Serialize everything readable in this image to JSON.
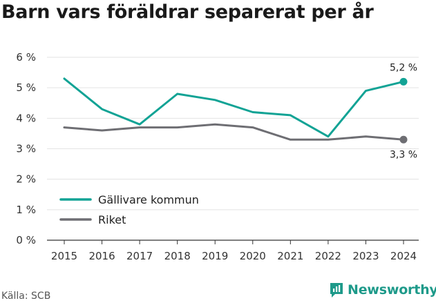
{
  "title": "Barn vars föräldrar separerat per år",
  "source": "Källa: SCB",
  "brand": {
    "name": "Newsworthy",
    "icon": "newsworthy-logo-icon",
    "color": "#1e9a8a"
  },
  "chart_data": {
    "type": "line",
    "title": "Barn vars föräldrar separerat per år",
    "x": [
      "2015",
      "2016",
      "2017",
      "2018",
      "2019",
      "2020",
      "2021",
      "2022",
      "2023",
      "2024"
    ],
    "ylim": [
      0,
      6
    ],
    "yticks": [
      "0 %",
      "1 %",
      "2 %",
      "3 %",
      "4 %",
      "5 %",
      "6 %"
    ],
    "grid": true,
    "legend_position": "bottom-left",
    "series": [
      {
        "name": "Gällivare kommun",
        "color": "#12a395",
        "values": [
          5.3,
          4.3,
          3.8,
          4.8,
          4.6,
          4.2,
          4.1,
          3.4,
          4.9,
          5.2
        ],
        "end_label": "5,2 %"
      },
      {
        "name": "Riket",
        "color": "#6e6e73",
        "values": [
          3.7,
          3.6,
          3.7,
          3.7,
          3.8,
          3.7,
          3.3,
          3.3,
          3.4,
          3.3
        ],
        "end_label": "3,3 %"
      }
    ]
  }
}
